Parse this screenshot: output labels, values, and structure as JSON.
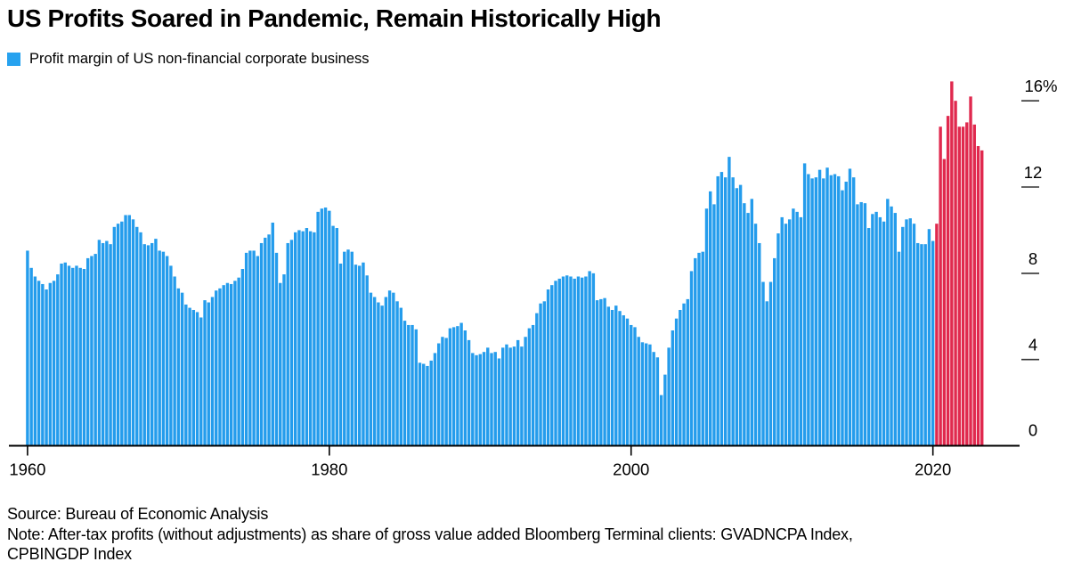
{
  "header": {
    "title": "US Profits Soared in Pandemic, Remain Historically High"
  },
  "legend": {
    "label": "Profit margin of US non-financial corporate business",
    "swatch_color": "#27A2EF"
  },
  "colors": {
    "bar_blue": "#249CEC",
    "bar_red": "#E0294E",
    "axis": "#000000"
  },
  "footer": {
    "source": "Source: Bureau of Economic Analysis",
    "note_line1": "Note: After-tax profits (without adjustments) as share of gross value added Bloomberg Terminal clients: GVADNCPA Index,",
    "note_line2": "CPBINGDP Index"
  },
  "chart_data": {
    "type": "bar",
    "title": "US Profits Soared in Pandemic, Remain Historically High",
    "series_name": "Profit margin of US non-financial corporate business",
    "unit": "%",
    "frequency": "quarterly",
    "start_period": "1960Q1",
    "end_period": "2023Q2",
    "xlabel": "",
    "ylabel": "",
    "ylim": [
      0,
      17.5
    ],
    "grid": false,
    "legend_position": "top-left",
    "x_tick_labels": [
      "1960",
      "1980",
      "2000",
      "2020"
    ],
    "x_tick_indices": [
      0,
      80,
      160,
      240
    ],
    "y_tick_values": [
      0,
      4,
      8,
      12,
      16
    ],
    "y_tick_labels": [
      "0",
      "4",
      "8",
      "12",
      "16%"
    ],
    "highlight": {
      "start_index": 241,
      "start_period": "2020Q2",
      "color": "#E0294E",
      "meaning": "pandemic-era quarters shown in red"
    },
    "values": [
      9.05,
      8.25,
      7.85,
      7.65,
      7.5,
      7.25,
      7.55,
      7.65,
      7.95,
      8.45,
      8.5,
      8.35,
      8.25,
      8.35,
      8.25,
      8.2,
      8.7,
      8.8,
      8.9,
      9.55,
      9.4,
      9.5,
      9.35,
      10.15,
      10.3,
      10.4,
      10.7,
      10.7,
      10.5,
      10.15,
      9.9,
      9.35,
      9.3,
      9.4,
      9.6,
      9.05,
      9.0,
      8.8,
      8.35,
      7.85,
      7.3,
      7.1,
      6.55,
      6.4,
      6.3,
      6.2,
      5.95,
      6.75,
      6.65,
      6.9,
      7.2,
      7.3,
      7.45,
      7.55,
      7.5,
      7.65,
      7.8,
      8.2,
      8.95,
      9.05,
      9.05,
      8.8,
      9.4,
      9.65,
      9.8,
      10.35,
      8.95,
      7.55,
      7.95,
      9.4,
      9.55,
      9.9,
      10.0,
      9.95,
      10.1,
      9.95,
      9.9,
      10.85,
      11.0,
      11.05,
      10.9,
      10.2,
      10.1,
      8.45,
      9.0,
      9.1,
      9.0,
      8.4,
      8.35,
      8.5,
      7.9,
      7.1,
      6.9,
      6.65,
      6.5,
      6.9,
      7.2,
      7.1,
      6.7,
      6.4,
      5.8,
      5.6,
      5.6,
      5.4,
      3.85,
      3.8,
      3.7,
      3.95,
      4.3,
      4.75,
      5.05,
      5.0,
      5.45,
      5.5,
      5.55,
      5.7,
      5.35,
      4.9,
      4.3,
      4.2,
      4.25,
      4.35,
      4.55,
      4.3,
      4.35,
      4.05,
      4.55,
      4.7,
      4.55,
      4.6,
      4.9,
      4.6,
      5.05,
      5.45,
      5.6,
      6.15,
      6.6,
      6.7,
      7.25,
      7.45,
      7.65,
      7.75,
      7.85,
      7.9,
      7.85,
      7.75,
      7.85,
      7.8,
      7.85,
      8.1,
      8.0,
      6.75,
      6.8,
      6.85,
      6.45,
      6.3,
      6.5,
      6.25,
      6.05,
      5.9,
      5.6,
      5.5,
      5.05,
      4.8,
      4.75,
      4.7,
      4.35,
      4.1,
      2.35,
      3.3,
      4.55,
      5.35,
      5.9,
      6.3,
      6.6,
      6.8,
      8.1,
      8.7,
      8.95,
      9.0,
      11.0,
      11.8,
      11.2,
      12.5,
      12.7,
      12.45,
      13.4,
      12.45,
      11.95,
      12.1,
      11.25,
      10.8,
      11.45,
      10.3,
      9.4,
      7.6,
      6.7,
      7.6,
      8.7,
      9.85,
      10.6,
      10.3,
      10.5,
      11.0,
      10.85,
      10.6,
      13.1,
      12.6,
      12.4,
      12.45,
      12.8,
      12.4,
      12.9,
      12.55,
      12.6,
      12.5,
      11.85,
      12.25,
      12.85,
      12.45,
      11.2,
      11.3,
      11.25,
      10.1,
      10.75,
      10.85,
      10.6,
      10.4,
      11.45,
      11.1,
      10.8,
      9.0,
      10.15,
      10.5,
      10.55,
      10.3,
      9.4,
      9.35,
      9.35,
      10.05,
      9.5,
      10.3,
      14.8,
      13.3,
      15.3,
      16.9,
      16.0,
      14.8,
      14.8,
      15.0,
      16.2,
      14.9,
      13.9,
      13.7
    ]
  }
}
